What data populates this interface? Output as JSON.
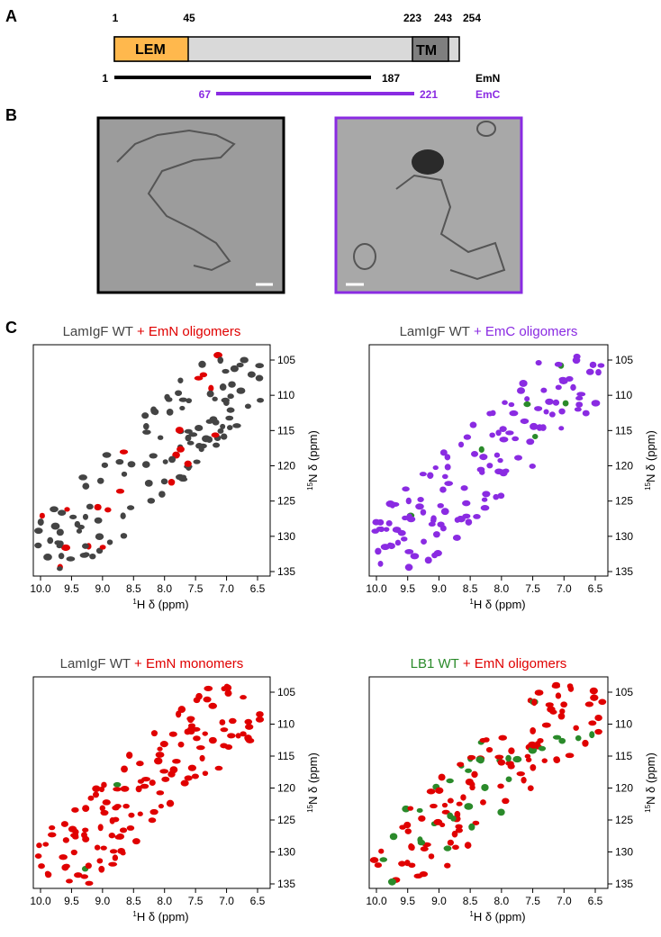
{
  "panel_a": {
    "label": "A",
    "positions": [
      "1",
      "45",
      "223",
      "243",
      "254"
    ],
    "domains": [
      "LEM",
      "TM"
    ],
    "constructs": [
      {
        "start": "1",
        "end": "187",
        "name": "EmN"
      },
      {
        "start": "67",
        "end": "221",
        "name": "EmC"
      }
    ]
  },
  "panel_b": {
    "label": "B"
  },
  "panel_c": {
    "label": "C",
    "xticks": [
      "10.0",
      "9.5",
      "9.0",
      "8.5",
      "8.0",
      "7.5",
      "7.0",
      "6.5"
    ],
    "yticks": [
      "105",
      "110",
      "115",
      "120",
      "125",
      "130",
      "135"
    ],
    "xlabel": {
      "sup": "1",
      "text": "H δ (ppm)"
    },
    "ylabel": {
      "sup": "15",
      "text": "N δ (ppm)"
    },
    "spectra": [
      {
        "base": "LamIgF WT",
        "addition": "+ EmN oligomers"
      },
      {
        "base": "LamIgF WT",
        "addition": "+ EmC oligomers"
      },
      {
        "base": "LamIgF WT",
        "addition": "+ EmN monomers"
      },
      {
        "base": "LB1 WT",
        "addition": "+ EmN oligomers"
      }
    ]
  }
}
